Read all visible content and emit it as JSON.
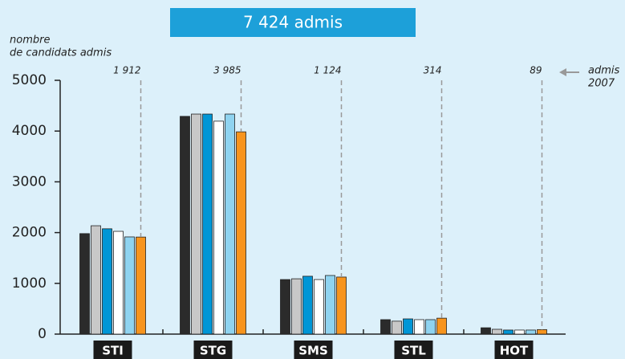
{
  "chart_data": {
    "type": "bar",
    "title": "7 424 admis",
    "y_label": [
      "nombre",
      "de candidats admis"
    ],
    "annotation": [
      "admis",
      "2007"
    ],
    "categories": [
      "STI",
      "STG",
      "SMS",
      "STL",
      "HOT"
    ],
    "series": [
      {
        "color": "#2b2b2b",
        "values": [
          1980,
          4290,
          1075,
          285,
          125
        ]
      },
      {
        "color": "#c8c8c8",
        "values": [
          2135,
          4335,
          1090,
          255,
          95
        ]
      },
      {
        "color": "#0096d6",
        "values": [
          2075,
          4335,
          1140,
          300,
          80
        ]
      },
      {
        "color": "#ffffff",
        "values": [
          2025,
          4195,
          1075,
          285,
          80
        ]
      },
      {
        "color": "#8fd3f0",
        "values": [
          1915,
          4335,
          1155,
          285,
          80
        ]
      },
      {
        "color": "#f7941d",
        "values": [
          1912,
          3985,
          1124,
          314,
          89
        ],
        "value_labels": [
          "1 912",
          "3 985",
          "1 124",
          "314",
          "89"
        ]
      }
    ],
    "ylim": [
      0,
      5000
    ],
    "yticks": [
      0,
      1000,
      2000,
      3000,
      4000,
      5000
    ],
    "grid": false
  }
}
